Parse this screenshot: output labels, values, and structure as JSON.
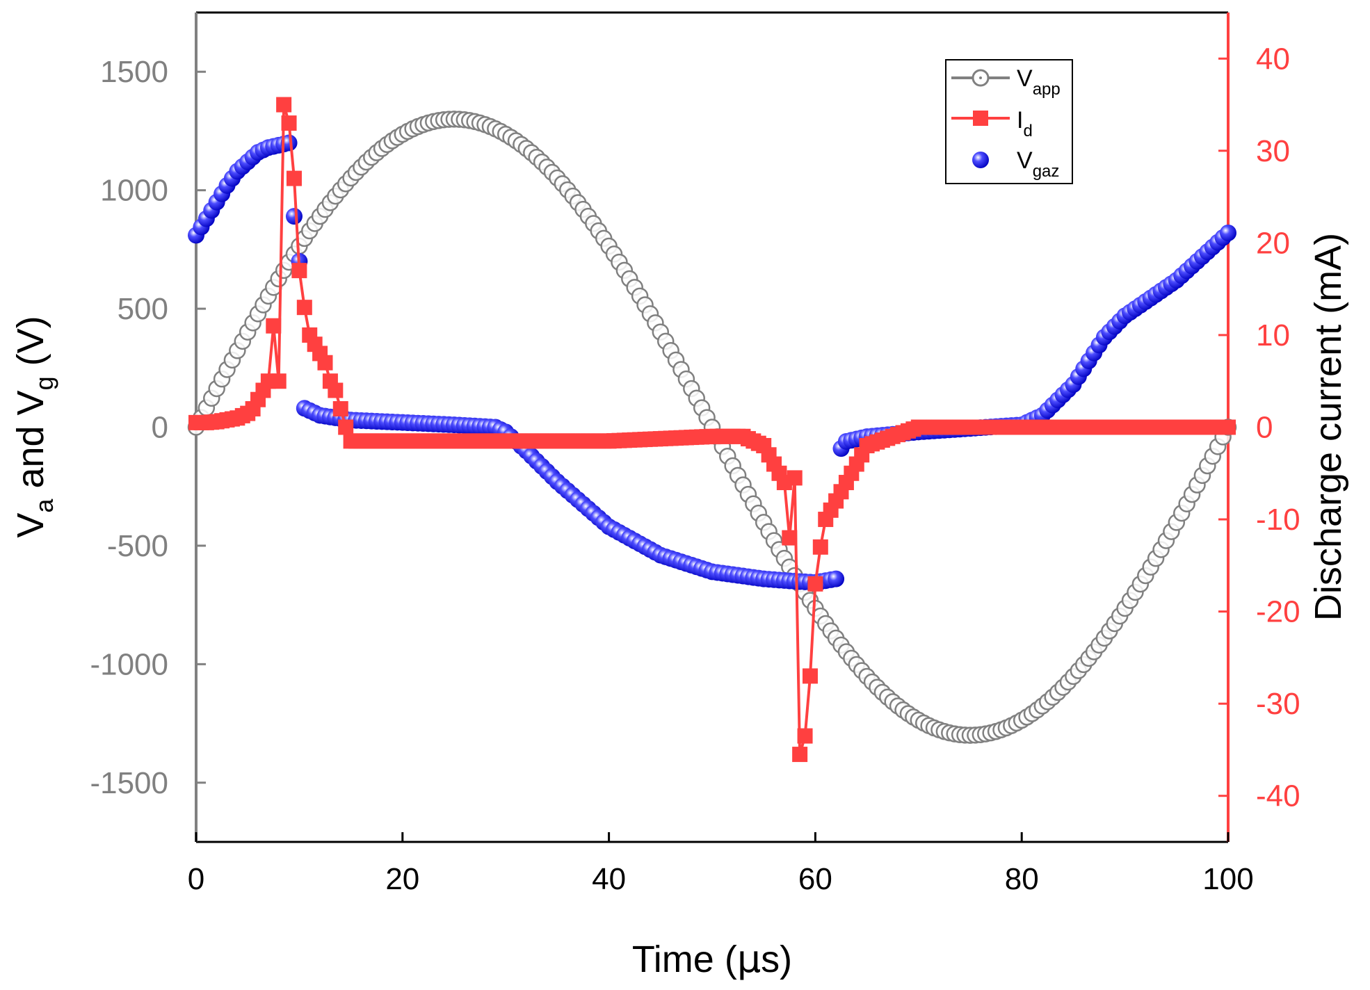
{
  "chart_data": {
    "type": "line",
    "xlabel": {
      "main": "Time (",
      "mu": "µ",
      "rest": "s)"
    },
    "ylabel_left": {
      "v1": "V",
      "s1": "a",
      "mid": " and V",
      "s2": "g",
      "end": " (V)"
    },
    "ylabel_right": "Discharge current (mA)",
    "xlim": [
      0,
      100
    ],
    "ylim_left": [
      -1750,
      1750
    ],
    "ylim_right": [
      -45,
      45
    ],
    "x_ticks": [
      0,
      20,
      40,
      60,
      80,
      100
    ],
    "y_left_ticks": [
      1500,
      1000,
      500,
      0,
      -500,
      -1000,
      -1500
    ],
    "y_right_ticks": [
      40,
      30,
      20,
      10,
      0,
      -10,
      -20,
      -30,
      -40
    ],
    "x_tick_labels": [
      "0",
      "20",
      "40",
      "60",
      "80",
      "100"
    ],
    "y_left_tick_labels": [
      "1500",
      "1000",
      "500",
      "0",
      "-500",
      "-1000",
      "-1500"
    ],
    "y_right_tick_labels": [
      "40",
      "30",
      "20",
      "10",
      "0",
      "-10",
      "-20",
      "-30",
      "-40"
    ],
    "colors": {
      "vapp": "#808080",
      "id": "#ff4040",
      "vgaz": "#1a1aff",
      "left_axis": "#808080",
      "right_axis": "#ff4040",
      "frame": "#000000"
    },
    "legend": {
      "position": "top-right",
      "entries": [
        {
          "base": "V",
          "sub": "app"
        },
        {
          "base": "I",
          "sub": "d"
        },
        {
          "base": "V",
          "sub": "gaz"
        }
      ]
    },
    "series": [
      {
        "name": "V_app",
        "axis": "left",
        "marker": "open-circle",
        "amplitude": 1300,
        "period_us": 100,
        "points": 201
      },
      {
        "name": "I_d",
        "axis": "right",
        "marker": "filled-square",
        "x": [
          0,
          1,
          2,
          3,
          4,
          5,
          5.5,
          6,
          6.5,
          7,
          7.5,
          8,
          8.5,
          9,
          9.5,
          10,
          10.5,
          11,
          11.5,
          12,
          12.5,
          13,
          13.5,
          14,
          14.5,
          15,
          15.5,
          16,
          20,
          30,
          40,
          50,
          52,
          53,
          54,
          55,
          56,
          57,
          57.5,
          58,
          58.5,
          59,
          59.5,
          60,
          60.5,
          61,
          62,
          63,
          64,
          65,
          70,
          80,
          88,
          90,
          100
        ],
        "y": [
          0.5,
          0.5,
          0.6,
          0.8,
          1,
          1.5,
          2,
          3,
          4,
          5,
          11,
          5,
          35,
          33,
          27,
          17,
          13,
          10,
          9,
          8,
          7,
          5,
          4,
          2,
          0,
          -1.5,
          -1.5,
          -1.5,
          -1.5,
          -1.5,
          -1.5,
          -1,
          -1,
          -1,
          -1.5,
          -2,
          -4,
          -6,
          -12,
          -5.5,
          -35.5,
          -33.5,
          -27,
          -17,
          -13,
          -10,
          -8,
          -6,
          -4,
          -2,
          0,
          0,
          0,
          0,
          0
        ]
      },
      {
        "name": "V_gaz",
        "axis": "left",
        "marker": "filled-sphere",
        "x": [
          0,
          1,
          2,
          3,
          4,
          5,
          6,
          7,
          8,
          9,
          9.5,
          10,
          10.5,
          11,
          12,
          15,
          20,
          25,
          29,
          30,
          32,
          35,
          40,
          45,
          50,
          55,
          58,
          60,
          62,
          62.5,
          63,
          65,
          70,
          80,
          82,
          85,
          88,
          90,
          93,
          95,
          97,
          100
        ],
        "y": [
          810,
          880,
          950,
          1020,
          1080,
          1120,
          1160,
          1180,
          1190,
          1200,
          890,
          700,
          80,
          70,
          50,
          30,
          20,
          10,
          0,
          -20,
          -100,
          -230,
          -420,
          -540,
          -610,
          -640,
          -650,
          -655,
          -640,
          -90,
          -60,
          -40,
          -20,
          10,
          50,
          180,
          380,
          470,
          560,
          620,
          700,
          820
        ]
      }
    ]
  }
}
